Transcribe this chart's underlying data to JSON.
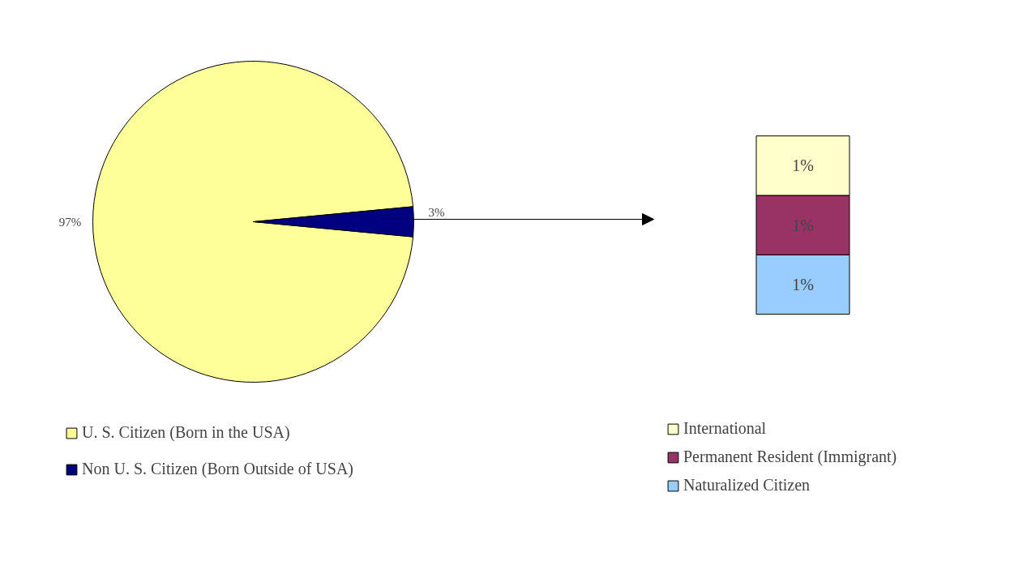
{
  "chart_data": [
    {
      "type": "pie",
      "categories": [
        "U. S. Citizen (Born in the USA)",
        "Non U. S. Citizen (Born Outside of USA)"
      ],
      "values": [
        97,
        3
      ],
      "colors": [
        "#ffff99",
        "#000080"
      ],
      "value_labels": [
        "97%",
        "3%"
      ],
      "legend": "bottom"
    },
    {
      "type": "bar",
      "stacked": true,
      "tick_labels": false,
      "categories": [
        null
      ],
      "series": [
        {
          "name": "Naturalized Citizen",
          "color": "#99ccff",
          "values": [
            1
          ],
          "value_labels": [
            "1%"
          ]
        },
        {
          "name": "Permanent Resident (Immigrant)",
          "color": "#993366",
          "values": [
            1
          ],
          "value_labels": [
            "1%"
          ]
        },
        {
          "name": "International",
          "color": "#ffffcc",
          "values": [
            1
          ],
          "value_labels": [
            "1%"
          ]
        }
      ],
      "legend": "bottom"
    }
  ]
}
